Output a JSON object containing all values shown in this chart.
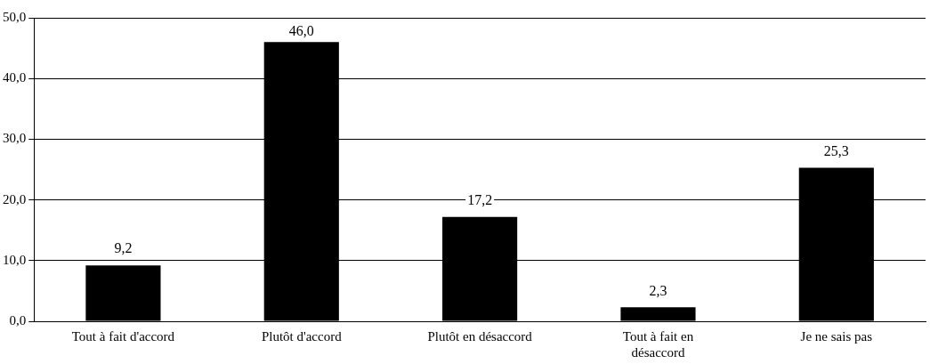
{
  "chart_data": {
    "type": "bar",
    "categories": [
      "Tout à fait d'accord",
      "Plutôt d'accord",
      "Plutôt en désaccord",
      "Tout à fait en désaccord",
      "Je ne sais pas"
    ],
    "values": [
      9.2,
      46.0,
      17.2,
      2.3,
      25.3
    ],
    "value_labels": [
      "9,2",
      "46,0",
      "17,2",
      "2,3",
      "25,3"
    ],
    "color": "#000000",
    "ylim": [
      0,
      50
    ],
    "yticks": [
      {
        "value": 0,
        "label": "0,0"
      },
      {
        "value": 10,
        "label": "10,0"
      },
      {
        "value": 20,
        "label": "20,0"
      },
      {
        "value": 30,
        "label": "30,0"
      },
      {
        "value": 40,
        "label": "40,0"
      },
      {
        "value": 50,
        "label": "50,0"
      }
    ],
    "grid": "y",
    "legend": false
  }
}
